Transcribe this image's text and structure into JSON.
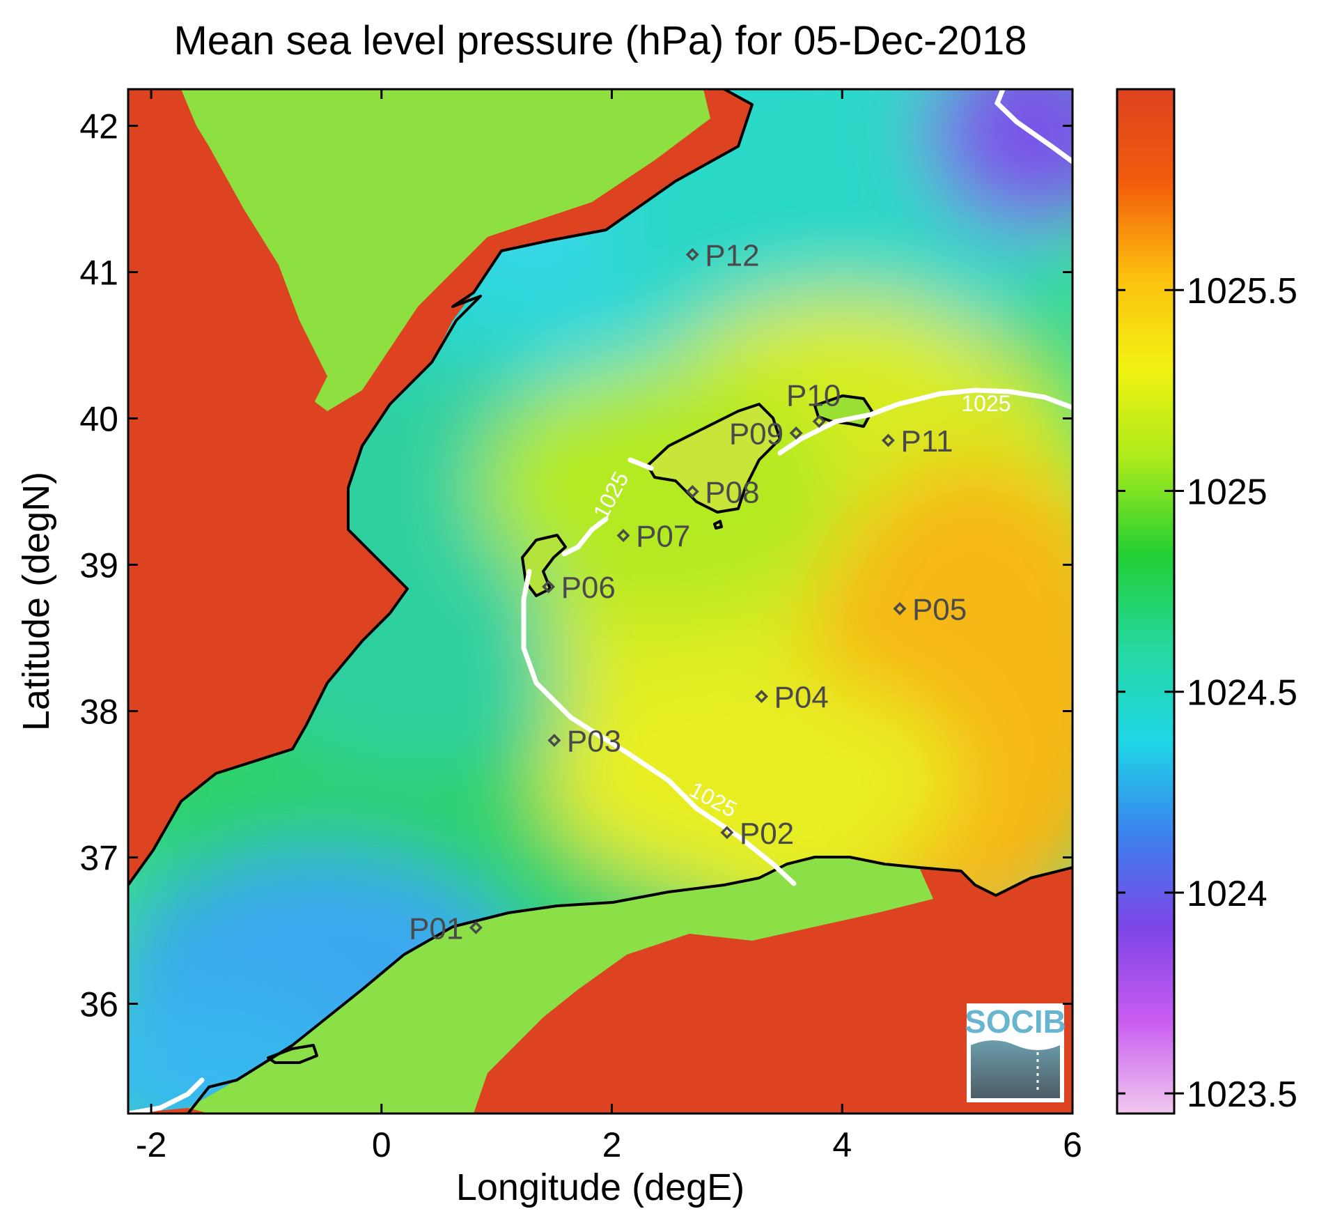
{
  "title": "Mean sea level pressure (hPa) for 05-Dec-2018",
  "xlabel": "Longitude (degE)",
  "ylabel": "Latitude (degN)",
  "xlim": [
    -2.2,
    6.0
  ],
  "ylim": [
    35.25,
    42.25
  ],
  "x_ticks": [
    {
      "value": -2,
      "label": "-2"
    },
    {
      "value": 0,
      "label": "0"
    },
    {
      "value": 2,
      "label": "2"
    },
    {
      "value": 4,
      "label": "4"
    },
    {
      "value": 6,
      "label": "6"
    }
  ],
  "y_ticks": [
    {
      "value": 36,
      "label": "36"
    },
    {
      "value": 37,
      "label": "37"
    },
    {
      "value": 38,
      "label": "38"
    },
    {
      "value": 39,
      "label": "39"
    },
    {
      "value": 40,
      "label": "40"
    },
    {
      "value": 41,
      "label": "41"
    },
    {
      "value": 42,
      "label": "42"
    }
  ],
  "colorbar": {
    "range": [
      1023.45,
      1026.0
    ],
    "ticks": [
      {
        "value": 1023.5,
        "label": "1023.5"
      },
      {
        "value": 1024,
        "label": "1024"
      },
      {
        "value": 1024.5,
        "label": "1024.5"
      },
      {
        "value": 1025,
        "label": "1025"
      },
      {
        "value": 1025.5,
        "label": "1025.5"
      }
    ],
    "colors": [
      "#f0c8ee",
      "#c95cf0",
      "#7d45e6",
      "#3b82ee",
      "#1fd6e6",
      "#25d8a0",
      "#22cf33",
      "#a8ea1c",
      "#f2f212",
      "#fcbf0e",
      "#f25c0c",
      "#dd4320"
    ]
  },
  "contour_labels": [
    {
      "lon": 5.25,
      "lat": 40.05,
      "text": "1025",
      "rotate": 0
    },
    {
      "lon": 2.05,
      "lat": 39.45,
      "text": "1025",
      "rotate": -62
    },
    {
      "lon": 2.85,
      "lat": 37.35,
      "text": "1025",
      "rotate": 28
    }
  ],
  "stations": [
    {
      "id": "P01",
      "lon": 0.82,
      "lat": 36.52,
      "label_side": "left"
    },
    {
      "id": "P02",
      "lon": 3.0,
      "lat": 37.17,
      "label_side": "right"
    },
    {
      "id": "P03",
      "lon": 1.5,
      "lat": 37.8,
      "label_side": "right"
    },
    {
      "id": "P04",
      "lon": 3.3,
      "lat": 38.1,
      "label_side": "right"
    },
    {
      "id": "P05",
      "lon": 4.5,
      "lat": 38.7,
      "label_side": "right"
    },
    {
      "id": "P06",
      "lon": 1.45,
      "lat": 38.85,
      "label_side": "right"
    },
    {
      "id": "P07",
      "lon": 2.1,
      "lat": 39.2,
      "label_side": "right"
    },
    {
      "id": "P08",
      "lon": 2.7,
      "lat": 39.5,
      "label_side": "right"
    },
    {
      "id": "P09",
      "lon": 3.6,
      "lat": 39.9,
      "label_side": "left"
    },
    {
      "id": "P10",
      "lon": 3.8,
      "lat": 39.98,
      "label_side": "above"
    },
    {
      "id": "P11",
      "lon": 4.4,
      "lat": 39.85,
      "label_side": "right"
    },
    {
      "id": "P12",
      "lon": 2.7,
      "lat": 41.12,
      "label_side": "right"
    }
  ],
  "colors": {
    "land": "#dd4320",
    "coastline": "#000000",
    "contour": "#ffffff",
    "station_marker": "#4a4a4a"
  },
  "logo": {
    "text": "SOCIB"
  }
}
